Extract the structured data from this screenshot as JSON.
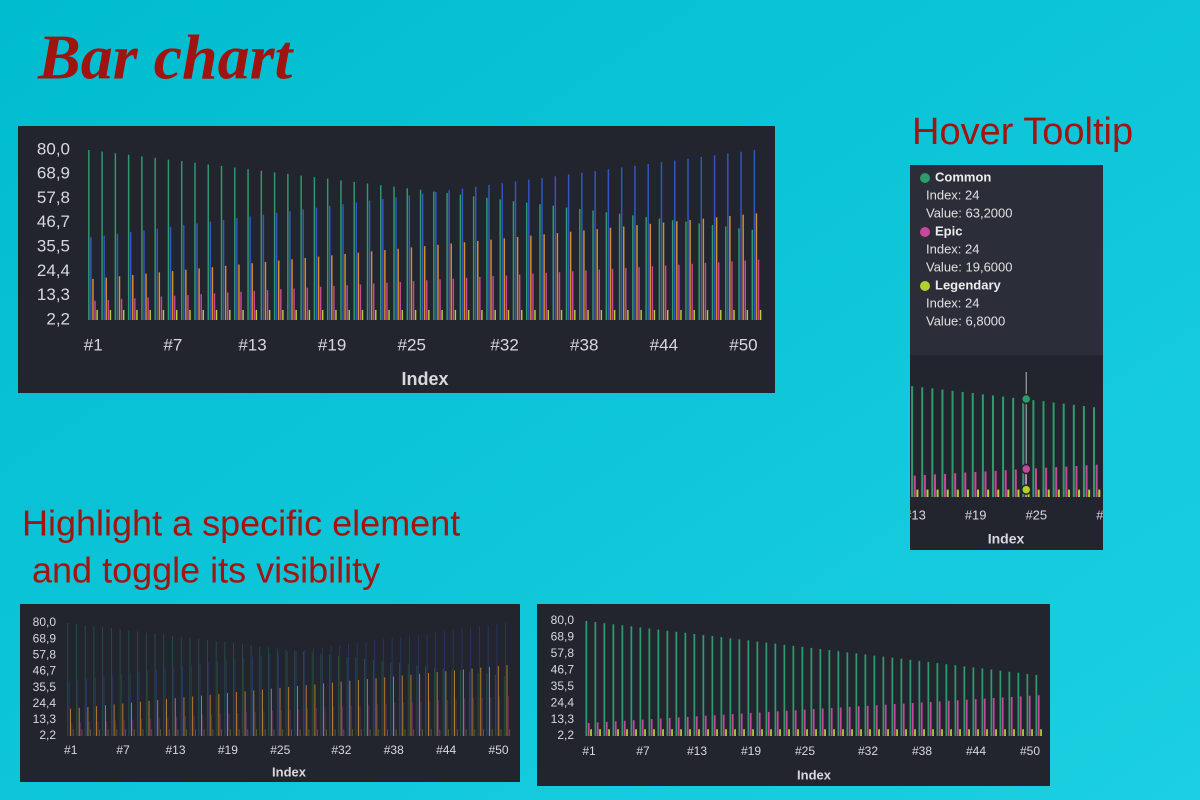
{
  "title": "Bar chart",
  "hover_heading": "Hover Tooltip",
  "highlight_heading": [
    "Highlight a specific element",
    " and toggle its visibility"
  ],
  "chart_data": {
    "type": "bar",
    "x_label": "Index",
    "x": [
      1,
      2,
      3,
      4,
      5,
      6,
      7,
      8,
      9,
      10,
      11,
      12,
      13,
      14,
      15,
      16,
      17,
      18,
      19,
      20,
      21,
      22,
      23,
      24,
      25,
      26,
      27,
      28,
      29,
      30,
      31,
      32,
      33,
      34,
      35,
      36,
      37,
      38,
      39,
      40,
      41,
      42,
      43,
      44,
      45,
      46,
      47,
      48,
      49,
      50,
      51
    ],
    "xlim": [
      0,
      52
    ],
    "xticks": [
      {
        "value": 1,
        "label": "#1"
      },
      {
        "value": 7,
        "label": "#7"
      },
      {
        "value": 13,
        "label": "#13"
      },
      {
        "value": 19,
        "label": "#19"
      },
      {
        "value": 25,
        "label": "#25"
      },
      {
        "value": 32,
        "label": "#32"
      },
      {
        "value": 38,
        "label": "#38"
      },
      {
        "value": 44,
        "label": "#44"
      },
      {
        "value": 50,
        "label": "#50"
      }
    ],
    "ylim": [
      2.2,
      80
    ],
    "yticks": [
      {
        "value": 2.2,
        "label": "2,2"
      },
      {
        "value": 13.3,
        "label": "13,3"
      },
      {
        "value": 24.4,
        "label": "24,4"
      },
      {
        "value": 35.5,
        "label": "35,5"
      },
      {
        "value": 46.7,
        "label": "46,7"
      },
      {
        "value": 57.8,
        "label": "57,8"
      },
      {
        "value": 68.9,
        "label": "68,9"
      },
      {
        "value": 80,
        "label": "80,0"
      }
    ],
    "series": [
      {
        "name": "Common",
        "color": "#2f9a6c",
        "values": [
          80.0,
          79.3,
          78.5,
          77.8,
          77.1,
          76.4,
          75.6,
          74.9,
          74.2,
          73.4,
          72.7,
          72.0,
          71.2,
          70.5,
          69.8,
          69.1,
          68.3,
          67.6,
          66.9,
          66.1,
          65.4,
          64.7,
          63.9,
          63.2,
          62.5,
          61.8,
          61.0,
          60.3,
          59.6,
          58.8,
          58.1,
          57.4,
          56.6,
          55.9,
          55.2,
          54.5,
          53.7,
          53.0,
          52.3,
          51.5,
          50.8,
          50.1,
          49.3,
          48.6,
          47.9,
          47.2,
          46.4,
          45.7,
          45.0,
          44.2,
          43.5
        ]
      },
      {
        "name": "Epic",
        "color": "#c9479a",
        "values": [
          11.0,
          11.4,
          11.8,
          12.1,
          12.5,
          12.9,
          13.3,
          13.6,
          14.0,
          14.4,
          14.8,
          15.1,
          15.5,
          15.9,
          16.3,
          16.6,
          17.0,
          17.4,
          17.8,
          18.1,
          18.5,
          18.9,
          19.3,
          19.6,
          20.0,
          20.4,
          20.8,
          21.1,
          21.5,
          21.9,
          22.3,
          22.6,
          23.0,
          23.4,
          23.8,
          24.1,
          24.5,
          24.9,
          25.3,
          25.6,
          26.0,
          26.4,
          26.8,
          27.1,
          27.5,
          27.9,
          28.3,
          28.6,
          29.0,
          29.4,
          29.8
        ]
      },
      {
        "name": "Legendary",
        "color": "#b5cf2e",
        "values": [
          6.8,
          6.8,
          6.8,
          6.8,
          6.8,
          6.8,
          6.8,
          6.8,
          6.8,
          6.8,
          6.8,
          6.8,
          6.8,
          6.8,
          6.8,
          6.8,
          6.8,
          6.8,
          6.8,
          6.8,
          6.8,
          6.8,
          6.8,
          6.8,
          6.8,
          6.8,
          6.8,
          6.8,
          6.8,
          6.8,
          6.8,
          6.8,
          6.8,
          6.8,
          6.8,
          6.8,
          6.8,
          6.8,
          6.8,
          6.8,
          6.8,
          6.8,
          6.8,
          6.8,
          6.8,
          6.8,
          6.8,
          6.8,
          6.8,
          6.8,
          6.8
        ]
      },
      {
        "color": "#3456c2",
        "values": [
          40,
          40.8,
          41.6,
          42.4,
          43.2,
          44,
          44.8,
          45.6,
          46.4,
          47.2,
          48,
          48.8,
          49.6,
          50.4,
          51.2,
          52,
          52.8,
          53.6,
          54.4,
          55.2,
          56,
          56.8,
          57.6,
          58.4,
          59.2,
          60,
          60.8,
          61.6,
          62.4,
          63.2,
          64,
          64.8,
          65.6,
          66.4,
          67.2,
          68,
          68.8,
          69.6,
          70.4,
          71.2,
          72,
          72.8,
          73.6,
          74.4,
          75.2,
          76,
          76.8,
          77.6,
          78.4,
          79.2,
          80
        ]
      },
      {
        "color": "#d68f28",
        "values": [
          21,
          21.6,
          22.2,
          22.8,
          23.4,
          24,
          24.6,
          25.2,
          25.8,
          26.4,
          27,
          27.6,
          28.2,
          28.8,
          29.4,
          30,
          30.6,
          31.2,
          31.8,
          32.4,
          33,
          33.6,
          34.2,
          34.8,
          35.4,
          36,
          36.6,
          37.2,
          37.8,
          38.4,
          39,
          39.6,
          40.2,
          40.8,
          41.4,
          42,
          42.6,
          43.2,
          43.8,
          44.4,
          45,
          45.6,
          46.2,
          46.8,
          47.4,
          48,
          48.6,
          49.2,
          49.8,
          50.4,
          51
        ]
      }
    ],
    "views": [
      {
        "visible": [
          0,
          3,
          4,
          1,
          2
        ],
        "y_ticks": true
      },
      {
        "visible": [
          0,
          3,
          4,
          1,
          2
        ],
        "highlight": 4,
        "y_ticks": true
      },
      {
        "visible": [
          0,
          1,
          2
        ],
        "y_ticks": true
      },
      {
        "visible": [
          0,
          1,
          2
        ],
        "y_ticks": false,
        "xlim": [
          12.5,
          31.5
        ],
        "hover": 24,
        "tooltip": [
          {
            "series": 0,
            "index": "Index: 24",
            "value": "Value: 63,2000"
          },
          {
            "series": 1,
            "index": "Index: 24",
            "value": "Value: 19,6000"
          },
          {
            "series": 2,
            "index": "Index: 24",
            "value": "Value: 6,8000"
          }
        ]
      }
    ]
  }
}
